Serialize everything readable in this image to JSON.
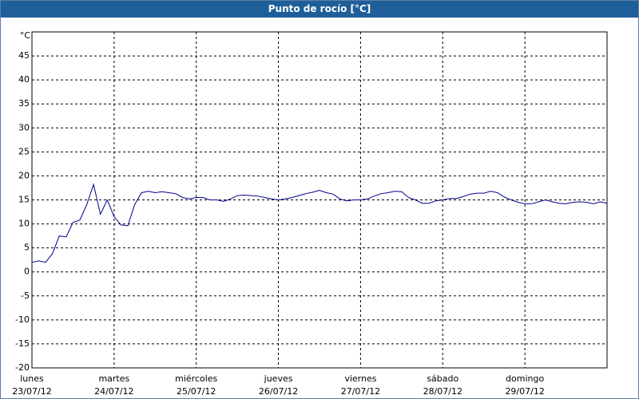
{
  "chart_data": {
    "type": "line",
    "title": "Punto de rocío [°C]",
    "y_label": "°C",
    "xlim": [
      0,
      168
    ],
    "ylim": [
      -20,
      50
    ],
    "yticks": [
      -20,
      -15,
      -10,
      -5,
      0,
      5,
      10,
      15,
      20,
      25,
      30,
      35,
      40,
      45
    ],
    "xticks": [
      {
        "value": 0,
        "label": "lunes",
        "date": "23/07/12"
      },
      {
        "value": 24,
        "label": "martes",
        "date": "24/07/12"
      },
      {
        "value": 48,
        "label": "miércoles",
        "date": "25/07/12"
      },
      {
        "value": 72,
        "label": "jueves",
        "date": "26/07/12"
      },
      {
        "value": 96,
        "label": "viernes",
        "date": "27/07/12"
      },
      {
        "value": 120,
        "label": "sábado",
        "date": "28/07/12"
      },
      {
        "value": 144,
        "label": "domingo",
        "date": "29/07/12"
      }
    ],
    "grid": true,
    "series": [
      {
        "color": "#00008b",
        "x": [
          0,
          2,
          4,
          6,
          8,
          10,
          12,
          14,
          16,
          18,
          20,
          22,
          24,
          26,
          28,
          30,
          32,
          34,
          36,
          38,
          40,
          42,
          44,
          46,
          48,
          50,
          52,
          54,
          56,
          58,
          60,
          62,
          64,
          66,
          68,
          70,
          72,
          74,
          76,
          78,
          80,
          82,
          84,
          86,
          88,
          90,
          92,
          94,
          96,
          98,
          100,
          102,
          104,
          106,
          108,
          110,
          112,
          114,
          116,
          118,
          120,
          122,
          124,
          126,
          128,
          130,
          132,
          134,
          136,
          138,
          140,
          142,
          144,
          146,
          148,
          150,
          152,
          154,
          156,
          158,
          160,
          162,
          164,
          166,
          168
        ],
        "values": [
          2,
          2.3,
          2,
          3.8,
          7.5,
          7.3,
          10.3,
          10.8,
          14,
          18.2,
          12,
          15,
          11.5,
          9.8,
          9.6,
          14,
          16.5,
          16.8,
          16.5,
          16.7,
          16.5,
          16.3,
          15.5,
          15.2,
          15.5,
          15.5,
          15,
          15,
          14.7,
          15.2,
          15.9,
          16,
          15.9,
          15.8,
          15.5,
          15.2,
          15,
          15.2,
          15.5,
          15.9,
          16.3,
          16.6,
          17,
          16.5,
          16.2,
          15.2,
          14.8,
          15,
          15,
          15.2,
          15.8,
          16.3,
          16.5,
          16.8,
          16.7,
          15.5,
          15,
          14.3,
          14.3,
          14.8,
          15,
          15.3,
          15.3,
          15.7,
          16.2,
          16.4,
          16.4,
          16.8,
          16.5,
          15.6,
          15,
          14.5,
          14.2,
          14.2,
          14.6,
          15,
          14.6,
          14.3,
          14.2,
          14.5,
          14.6,
          14.5,
          14.2,
          14.6,
          14.3
        ]
      }
    ]
  }
}
